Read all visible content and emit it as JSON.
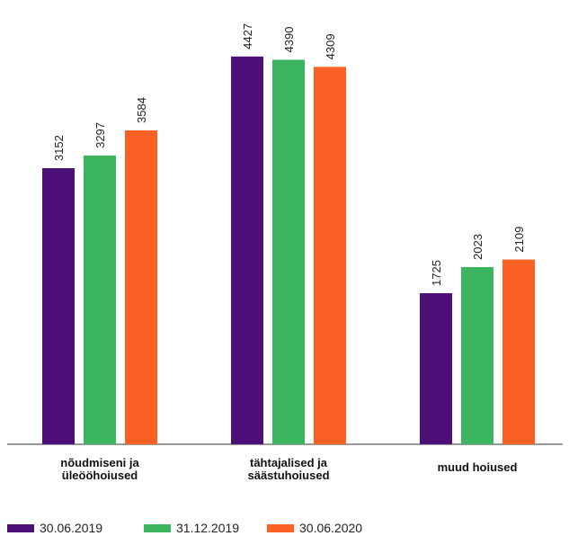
{
  "chart_data": {
    "type": "bar",
    "categories": [
      [
        "nõudmiseni ja",
        "üleööhoiused"
      ],
      [
        "tähtajalised ja",
        "säästuhoiused"
      ],
      [
        "muud hoiused"
      ]
    ],
    "series": [
      {
        "name": "30.06.2019",
        "color": "#4d0f78",
        "values": [
          3152,
          4427,
          1725
        ]
      },
      {
        "name": "31.12.2019",
        "color": "#3cb65e",
        "values": [
          3297,
          4390,
          2023
        ]
      },
      {
        "name": "30.06.2020",
        "color": "#fa5f23",
        "values": [
          3584,
          4309,
          2109
        ]
      }
    ],
    "value_labels": [
      [
        "3152",
        "4427",
        "1725"
      ],
      [
        "3297",
        "4390",
        "2023"
      ],
      [
        "3584",
        "4309",
        "2109"
      ]
    ],
    "title": "",
    "xlabel": "",
    "ylabel": "",
    "ylim": [
      0,
      4600
    ],
    "grid": false,
    "legend": "bottom-left",
    "axis_color": "#333333"
  }
}
